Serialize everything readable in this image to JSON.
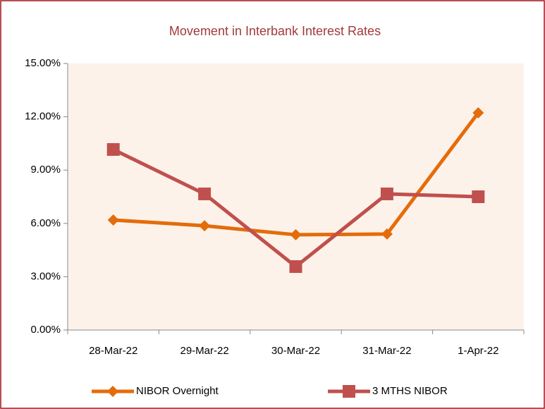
{
  "chart_data": {
    "type": "line",
    "title": "Movement in Interbank Interest Rates",
    "categories": [
      "28-Mar-22",
      "29-Mar-22",
      "30-Mar-22",
      "31-Mar-22",
      "1-Apr-22"
    ],
    "series": [
      {
        "name": "NIBOR Overnight",
        "color": "#e46c0a",
        "marker": "diamond",
        "values": [
          6.19,
          5.87,
          5.36,
          5.4,
          12.22
        ]
      },
      {
        "name": "3 MTHS NIBOR",
        "color": "#c0504d",
        "marker": "square",
        "values": [
          10.16,
          7.66,
          3.57,
          7.66,
          7.5
        ]
      }
    ],
    "ylim": [
      0,
      15
    ],
    "yticks": [
      {
        "value": 0,
        "label": "0.00%"
      },
      {
        "value": 3,
        "label": "3.00%"
      },
      {
        "value": 6,
        "label": "6.00%"
      },
      {
        "value": 9,
        "label": "9.00%"
      },
      {
        "value": 12,
        "label": "12.00%"
      },
      {
        "value": 15,
        "label": "15.00%"
      }
    ],
    "legend": "bottom"
  }
}
